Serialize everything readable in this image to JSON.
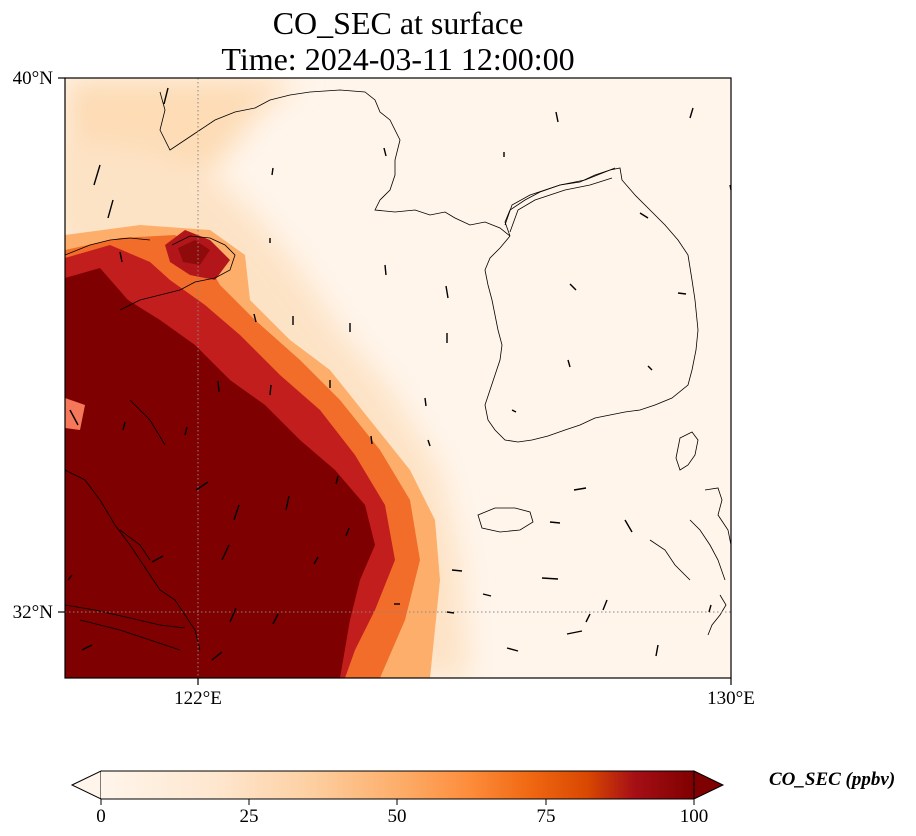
{
  "title": {
    "line1": "CO_SEC at surface",
    "line2": "Time: 2024-03-11 12:00:00"
  },
  "map": {
    "lat_range": [
      31,
      40
    ],
    "lon_range": [
      120,
      130
    ],
    "lat_ticks": [
      {
        "value": 40,
        "label": "40°N"
      },
      {
        "value": 32,
        "label": "32°N"
      }
    ],
    "lon_ticks": [
      {
        "value": 122,
        "label": "122°E"
      },
      {
        "value": 130,
        "label": "130°E"
      }
    ],
    "gridlines": {
      "lat": 32,
      "lon": 122,
      "style": "dotted"
    },
    "field": "CO_SEC",
    "wind_vectors": true
  },
  "colorbar": {
    "label": "CO_SEC (ppbv)",
    "min": 0,
    "max": 100,
    "ticks": [
      {
        "value": 0,
        "label": "0"
      },
      {
        "value": 25,
        "label": "25"
      },
      {
        "value": 50,
        "label": "50"
      },
      {
        "value": 75,
        "label": "75"
      },
      {
        "value": 100,
        "label": "100"
      }
    ],
    "colors": [
      "#fff5eb",
      "#fdd0a2",
      "#fd8d3c",
      "#d94801",
      "#a50f15",
      "#7f0000"
    ],
    "extend": "both"
  }
}
